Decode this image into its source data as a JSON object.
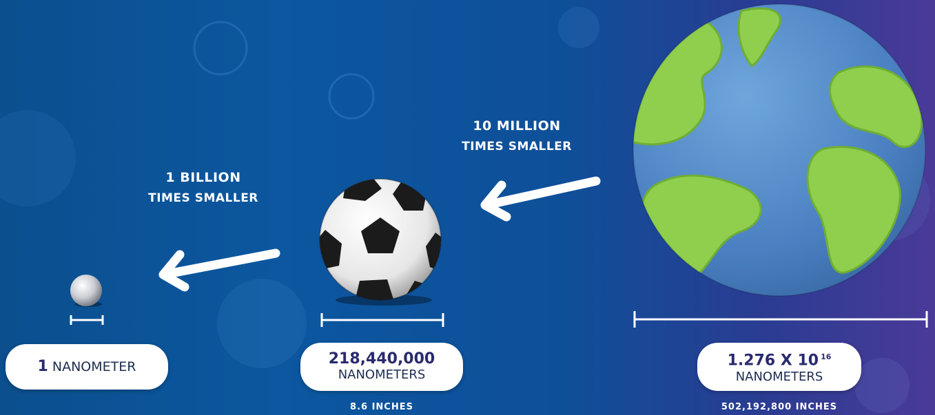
{
  "comparisons": [
    {
      "line1": "10 MILLION",
      "line2": "TIMES SMALLER"
    },
    {
      "line1": "1 BILLION",
      "line2": "TIMES SMALLER"
    }
  ],
  "objects": {
    "marble": {
      "value": "1",
      "unit": "NANOMETER",
      "subtext": ""
    },
    "soccer_ball": {
      "value": "218,440,000",
      "unit": "NANOMETERS",
      "subtext": "8.6 INCHES"
    },
    "earth": {
      "value_base": "1.276 X 10",
      "value_exp": "16",
      "unit": "NANOMETERS",
      "subtext": "502,192,800 INCHES"
    }
  },
  "colors": {
    "bg_left": "#0b4f8e",
    "bg_right": "#4a3a98",
    "ocean": "#4d86c6",
    "land": "#8fcf4d",
    "pill_text": "#2a2a6e"
  }
}
